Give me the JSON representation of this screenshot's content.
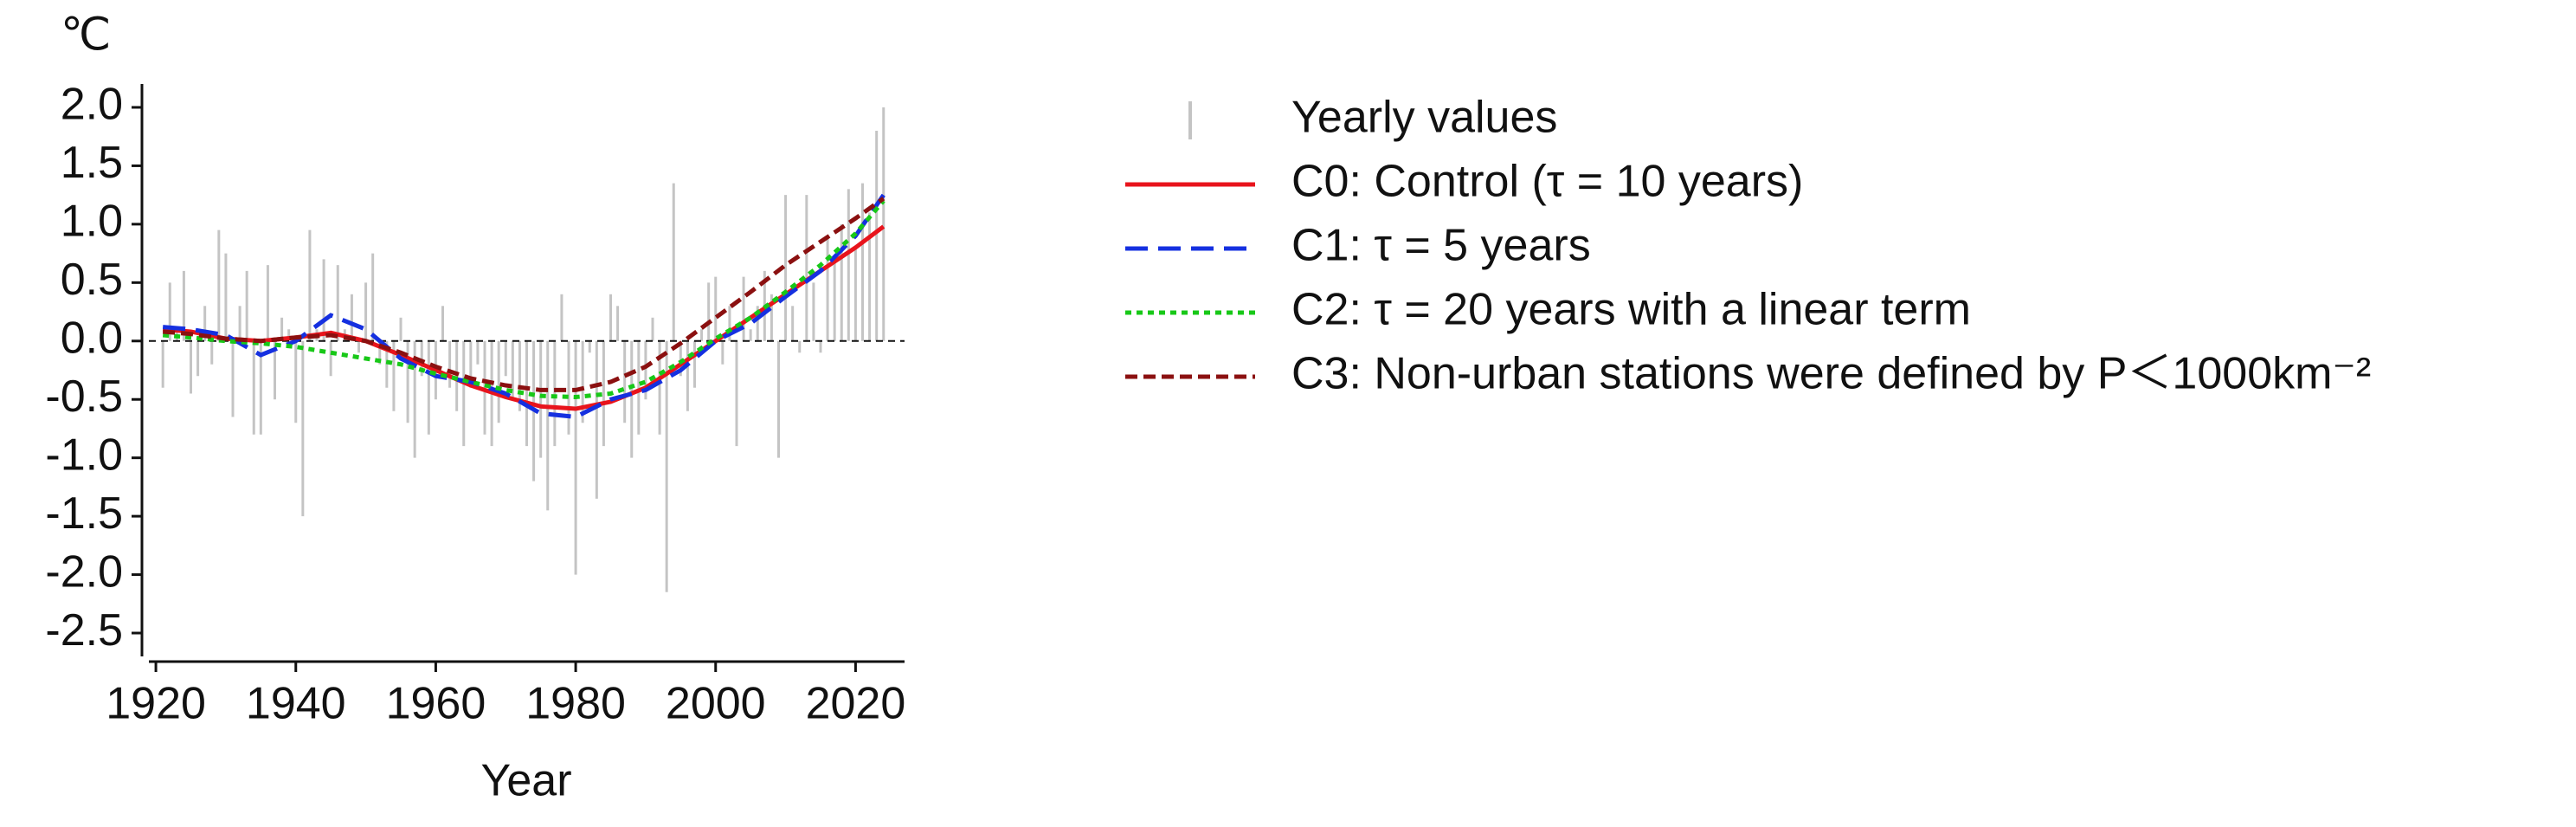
{
  "chart_data": {
    "type": "line",
    "unit_label": "℃",
    "xlabel": "Year",
    "xlim": [
      1919,
      2027
    ],
    "ylim": [
      -2.7,
      2.2
    ],
    "xticks": [
      1920,
      1940,
      1960,
      1980,
      2000,
      2020
    ],
    "yticks": [
      {
        "value": 2,
        "label": "2.0"
      },
      1.5,
      {
        "value": 1,
        "label": "1.0"
      },
      0.5,
      {
        "value": 0,
        "label": "0.0"
      },
      -0.5,
      {
        "value": -1,
        "label": "-1.0"
      },
      -1.5,
      {
        "value": -2,
        "label": "-2.0"
      },
      -2.5
    ],
    "reference_line": 0,
    "yearly": {
      "name": "Yearly values",
      "color": "#c4c4c4",
      "x": [
        1921,
        1922,
        1923,
        1924,
        1925,
        1926,
        1927,
        1928,
        1929,
        1930,
        1931,
        1932,
        1933,
        1934,
        1935,
        1936,
        1937,
        1938,
        1939,
        1940,
        1941,
        1942,
        1943,
        1944,
        1945,
        1946,
        1947,
        1948,
        1949,
        1950,
        1951,
        1952,
        1953,
        1954,
        1955,
        1956,
        1957,
        1958,
        1959,
        1960,
        1961,
        1962,
        1963,
        1964,
        1965,
        1966,
        1967,
        1968,
        1969,
        1970,
        1971,
        1972,
        1973,
        1974,
        1975,
        1976,
        1977,
        1978,
        1979,
        1980,
        1981,
        1982,
        1983,
        1984,
        1985,
        1986,
        1987,
        1988,
        1989,
        1990,
        1991,
        1992,
        1993,
        1994,
        1995,
        1996,
        1997,
        1998,
        1999,
        2000,
        2001,
        2002,
        2003,
        2004,
        2005,
        2006,
        2007,
        2008,
        2009,
        2010,
        2011,
        2012,
        2013,
        2014,
        2015,
        2016,
        2017,
        2018,
        2019,
        2020,
        2021,
        2022,
        2023,
        2024
      ],
      "values": [
        -0.4,
        0.5,
        0.1,
        0.6,
        -0.45,
        -0.3,
        0.3,
        -0.2,
        0.95,
        0.75,
        -0.65,
        0.3,
        0.6,
        -0.8,
        -0.8,
        0.65,
        -0.5,
        0.2,
        0.1,
        -0.7,
        -1.5,
        0.95,
        0.1,
        0.7,
        -0.3,
        0.65,
        0.1,
        0.4,
        -0.1,
        0.5,
        0.75,
        -0.2,
        -0.4,
        -0.6,
        0.2,
        -0.7,
        -1.0,
        -0.3,
        -0.8,
        -0.5,
        0.3,
        -0.4,
        -0.6,
        -0.9,
        -0.4,
        -0.2,
        -0.8,
        -0.9,
        -0.7,
        -0.3,
        -0.5,
        -0.6,
        -0.9,
        -1.2,
        -1.0,
        -1.45,
        -0.9,
        0.4,
        -0.8,
        -2.0,
        -0.7,
        -0.1,
        -1.35,
        -0.9,
        0.4,
        0.3,
        -0.7,
        -1.0,
        -0.8,
        -0.5,
        0.2,
        -0.8,
        -2.15,
        1.35,
        -0.3,
        -0.6,
        -0.4,
        0.1,
        0.5,
        0.55,
        -0.2,
        0.3,
        -0.9,
        0.55,
        0.1,
        0.3,
        0.6,
        0.4,
        -1.0,
        1.25,
        0.3,
        -0.1,
        1.25,
        0.5,
        -0.1,
        0.9,
        0.7,
        1.0,
        1.3,
        0.8,
        1.35,
        1.1,
        1.8,
        2.0
      ]
    },
    "x": [
      1921,
      1925,
      1930,
      1935,
      1940,
      1945,
      1950,
      1955,
      1960,
      1965,
      1970,
      1975,
      1980,
      1985,
      1990,
      1995,
      2000,
      2005,
      2010,
      2015,
      2020,
      2024
    ],
    "series": [
      {
        "name": "C0: Control (τ = 10 years)",
        "color": "#e8141c",
        "dash": "none",
        "values": [
          0.1,
          0.08,
          0.02,
          0.0,
          0.03,
          0.07,
          0.0,
          -0.12,
          -0.25,
          -0.38,
          -0.48,
          -0.56,
          -0.58,
          -0.52,
          -0.4,
          -0.2,
          0.0,
          0.2,
          0.4,
          0.6,
          0.8,
          0.98
        ]
      },
      {
        "name": "C1: τ = 5 years",
        "color": "#1530e0",
        "dash": "26 12",
        "values": [
          0.12,
          0.1,
          0.05,
          -0.12,
          0.0,
          0.22,
          0.1,
          -0.15,
          -0.3,
          -0.35,
          -0.45,
          -0.62,
          -0.65,
          -0.5,
          -0.42,
          -0.25,
          0.0,
          0.15,
          0.38,
          0.6,
          0.9,
          1.25
        ]
      },
      {
        "name": "C2: τ = 20 years with a linear term",
        "color": "#18c818",
        "dash": "7 6",
        "values": [
          0.05,
          0.03,
          0.0,
          -0.02,
          -0.05,
          -0.1,
          -0.15,
          -0.2,
          -0.28,
          -0.35,
          -0.42,
          -0.47,
          -0.48,
          -0.45,
          -0.35,
          -0.18,
          0.02,
          0.2,
          0.42,
          0.65,
          0.92,
          1.2
        ]
      },
      {
        "name": "C3: Non-urban stations were defined by P＜1000km⁻²",
        "color": "#8b1010",
        "dash": "14 7",
        "values": [
          0.08,
          0.06,
          0.02,
          0.0,
          0.03,
          0.05,
          0.0,
          -0.1,
          -0.22,
          -0.32,
          -0.38,
          -0.42,
          -0.42,
          -0.35,
          -0.22,
          -0.02,
          0.2,
          0.42,
          0.65,
          0.85,
          1.05,
          1.22
        ]
      }
    ]
  }
}
